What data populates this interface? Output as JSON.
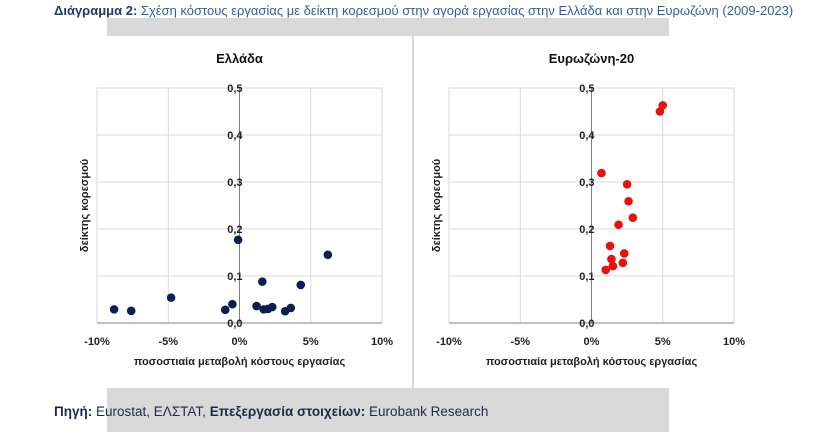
{
  "caption": {
    "label": "Διάγραμμα 2:",
    "text": "Σχέση κόστους εργασίας με δείκτη κορεσμού στην αγορά εργασίας στην Ελλάδα και στην Ευρωζώνη (2009-2023)"
  },
  "source": {
    "label1": "Πηγή:",
    "text1": "Eurostat, ΕΛΣΤΑΤ,",
    "label2": "Επεξεργασία στοιχείων:",
    "text2": "Eurobank Research"
  },
  "colors": {
    "greece": "#0d1f4d",
    "eurozone": "#e8110f",
    "grid": "#d9d9d9",
    "background": "#d9d9d9"
  },
  "chart_data": [
    {
      "type": "scatter",
      "title": "Ελλάδα",
      "xlabel": "ποσοστιαία μεταβολή κόστους εργασίας",
      "ylabel": "δείκτης κορεσμού",
      "xlim": [
        -10,
        10
      ],
      "ylim": [
        0,
        0.5
      ],
      "xticks": [
        -10,
        -5,
        0,
        5,
        10
      ],
      "xtick_labels": [
        "-10%",
        "-5%",
        "0%",
        "5%",
        "10%"
      ],
      "yticks": [
        0,
        0.1,
        0.2,
        0.3,
        0.4,
        0.5
      ],
      "ytick_labels": [
        "0,0",
        "0,1",
        "0,2",
        "0,3",
        "0,4",
        "0,5"
      ],
      "grid": true,
      "color": "#0d1f4d",
      "points": [
        {
          "x": -8.8,
          "y": 0.029
        },
        {
          "x": -7.6,
          "y": 0.026
        },
        {
          "x": -4.8,
          "y": 0.054
        },
        {
          "x": -1.0,
          "y": 0.028
        },
        {
          "x": -0.5,
          "y": 0.04
        },
        {
          "x": -0.1,
          "y": 0.177
        },
        {
          "x": 1.2,
          "y": 0.036
        },
        {
          "x": 1.6,
          "y": 0.088
        },
        {
          "x": 1.7,
          "y": 0.029
        },
        {
          "x": 2.0,
          "y": 0.03
        },
        {
          "x": 2.3,
          "y": 0.034
        },
        {
          "x": 3.2,
          "y": 0.025
        },
        {
          "x": 3.6,
          "y": 0.032
        },
        {
          "x": 4.3,
          "y": 0.081
        },
        {
          "x": 6.2,
          "y": 0.145
        }
      ]
    },
    {
      "type": "scatter",
      "title": "Ευρωζώνη-20",
      "xlabel": "ποσοστιαία μεταβολή κόστους εργασίας",
      "ylabel": "δείκτης κορεσμού",
      "xlim": [
        -10,
        10
      ],
      "ylim": [
        0,
        0.5
      ],
      "xticks": [
        -10,
        -5,
        0,
        5,
        10
      ],
      "xtick_labels": [
        "-10%",
        "-5%",
        "0%",
        "5%",
        "10%"
      ],
      "yticks": [
        0,
        0.1,
        0.2,
        0.3,
        0.4,
        0.5
      ],
      "ytick_labels": [
        "0,0",
        "0,1",
        "0,2",
        "0,3",
        "0,4",
        "0,5"
      ],
      "grid": true,
      "color": "#e8110f",
      "points": [
        {
          "x": 0.7,
          "y": 0.319
        },
        {
          "x": 1.0,
          "y": 0.113
        },
        {
          "x": 1.3,
          "y": 0.164
        },
        {
          "x": 1.4,
          "y": 0.136
        },
        {
          "x": 1.5,
          "y": 0.121
        },
        {
          "x": 1.9,
          "y": 0.209
        },
        {
          "x": 2.2,
          "y": 0.128
        },
        {
          "x": 2.3,
          "y": 0.148
        },
        {
          "x": 2.5,
          "y": 0.295
        },
        {
          "x": 2.6,
          "y": 0.259
        },
        {
          "x": 2.9,
          "y": 0.224
        },
        {
          "x": 4.8,
          "y": 0.45
        },
        {
          "x": 5.0,
          "y": 0.463
        }
      ]
    }
  ]
}
